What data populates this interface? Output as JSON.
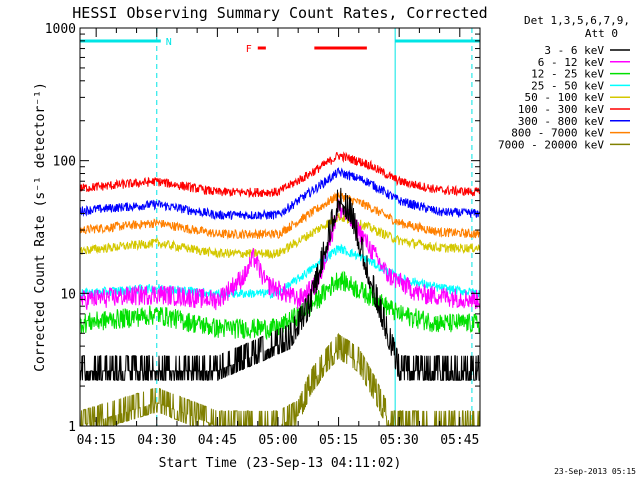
{
  "chart_data": {
    "type": "line",
    "title": "HESSI Observing Summary Count Rates, Corrected",
    "xlabel": "Start Time (23-Sep-13 04:11:02)",
    "ylabel": "Corrected Count Rate (s⁻¹ detector⁻¹)",
    "yscale": "log",
    "ylim": [
      1,
      1000
    ],
    "xlim": [
      "04:11",
      "05:50"
    ],
    "x_ticks": [
      "04:15",
      "04:30",
      "04:45",
      "05:00",
      "05:15",
      "05:30",
      "05:45"
    ],
    "y_ticks": [
      "1",
      "10",
      "100",
      "1000"
    ],
    "legend_header": [
      "Det 1,3,5,6,7,9,",
      "Att 0"
    ],
    "legend_position": "top-right, outside plot",
    "footer_timestamp": "23-Sep-2013 05:15",
    "flags": [
      {
        "label": "N",
        "color": "#00e5e5",
        "segments": [
          [
            "04:11",
            "04:31"
          ],
          [
            "05:29",
            "05:50"
          ]
        ]
      },
      {
        "label": "F",
        "color": "#ff0000",
        "segments": [
          [
            "04:55",
            "04:57"
          ],
          [
            "05:09",
            "05:22"
          ]
        ]
      }
    ],
    "night_markers": [
      "04:30",
      "05:29",
      "05:48"
    ],
    "series": [
      {
        "name": "3 - 6 keV",
        "color": "#000000",
        "x": [
          "04:11",
          "04:30",
          "04:45",
          "04:55",
          "05:03",
          "05:08",
          "05:13",
          "05:15",
          "05:18",
          "05:22",
          "05:27",
          "05:30",
          "05:40",
          "05:50"
        ],
        "y": [
          2.6,
          2.6,
          2.6,
          3.5,
          4.5,
          8,
          30,
          50,
          40,
          15,
          5,
          2.6,
          2.6,
          2.6
        ]
      },
      {
        "name": "6 - 12 keV",
        "color": "#ff00ff",
        "x": [
          "04:11",
          "04:30",
          "04:45",
          "04:52",
          "04:54",
          "04:57",
          "05:05",
          "05:10",
          "05:15",
          "05:20",
          "05:27",
          "05:35",
          "05:50"
        ],
        "y": [
          9,
          10,
          9,
          14,
          19,
          12,
          9,
          12,
          45,
          30,
          14,
          10,
          9
        ]
      },
      {
        "name": "12 - 25 keV",
        "color": "#00e000",
        "x": [
          "04:11",
          "04:30",
          "04:45",
          "05:00",
          "05:08",
          "05:15",
          "05:22",
          "05:30",
          "05:40",
          "05:50"
        ],
        "y": [
          6,
          7,
          5.5,
          5.5,
          8,
          13,
          10,
          7,
          6,
          6
        ]
      },
      {
        "name": "25 - 50 keV",
        "color": "#00ffff",
        "x": [
          "04:11",
          "04:30",
          "04:45",
          "05:00",
          "05:08",
          "05:15",
          "05:22",
          "05:30",
          "05:40",
          "05:50"
        ],
        "y": [
          10,
          11,
          10,
          10,
          15,
          22,
          18,
          13,
          11,
          10
        ]
      },
      {
        "name": "50 - 100 keV",
        "color": "#d4c800",
        "x": [
          "04:11",
          "04:30",
          "04:45",
          "05:00",
          "05:08",
          "05:15",
          "05:22",
          "05:30",
          "05:40",
          "05:50"
        ],
        "y": [
          21,
          24,
          20,
          20,
          28,
          38,
          32,
          25,
          22,
          22
        ]
      },
      {
        "name": "100 - 300 keV",
        "color": "#ff0000",
        "x": [
          "04:11",
          "04:30",
          "04:45",
          "05:00",
          "05:08",
          "05:15",
          "05:22",
          "05:30",
          "05:40",
          "05:50"
        ],
        "y": [
          62,
          70,
          58,
          58,
          80,
          110,
          95,
          70,
          60,
          58
        ]
      },
      {
        "name": "300 - 800 keV",
        "color": "#0000ff",
        "x": [
          "04:11",
          "04:30",
          "04:45",
          "05:00",
          "05:08",
          "05:15",
          "05:22",
          "05:30",
          "05:40",
          "05:50"
        ],
        "y": [
          42,
          47,
          39,
          39,
          58,
          82,
          70,
          50,
          41,
          40
        ]
      },
      {
        "name": "800 - 7000 keV",
        "color": "#ff8000",
        "x": [
          "04:11",
          "04:30",
          "04:45",
          "05:00",
          "05:08",
          "05:15",
          "05:22",
          "05:30",
          "05:40",
          "05:50"
        ],
        "y": [
          30,
          34,
          28,
          28,
          40,
          55,
          46,
          34,
          29,
          28
        ]
      },
      {
        "name": "7000 - 20000 keV",
        "color": "#808000",
        "x": [
          "04:11",
          "04:30",
          "04:45",
          "05:00",
          "05:05",
          "05:08",
          "05:12",
          "05:15",
          "05:20",
          "05:24",
          "05:28",
          "05:50"
        ],
        "y": [
          1,
          1.5,
          1,
          1,
          1.2,
          2,
          3,
          3.8,
          3,
          1.8,
          1,
          1
        ]
      }
    ]
  },
  "colors": {
    "axes": "#000000",
    "background": "#ffffff"
  }
}
